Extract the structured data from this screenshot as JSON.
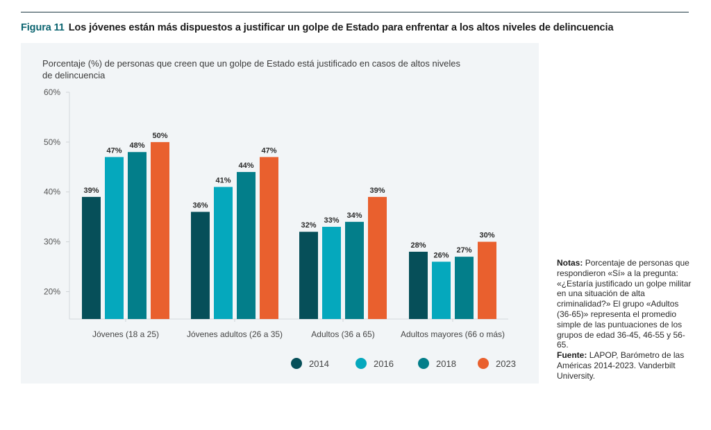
{
  "figure": {
    "number_label": "Figura 11",
    "title": "Los jóvenes están más dispuestos a justificar un golpe de Estado para enfrentar a los altos niveles de delincuencia"
  },
  "notes": {
    "notes_label": "Notas:",
    "notes_text": "Porcentaje de personas que respondieron «Sí» a la pregunta: «¿Estaría justificado un golpe militar en una situación de alta criminalidad?» El grupo «Adultos (36-65)» representa el promedio simple de las puntuaciones de los grupos de edad 36-45, 46-55 y 56-65.",
    "source_label": "Fuente:",
    "source_text": "LAPOP, Barómetro de las Américas 2014-2023. Vanderbilt University."
  },
  "chart_data": {
    "type": "bar",
    "title": "Porcentaje (%) de personas que creen que un golpe de Estado está justificado en casos de altos niveles de delincuencia",
    "xlabel": "",
    "ylabel": "",
    "categories": [
      "Jóvenes (18 a 25)",
      "Jóvenes adultos (26 a 35)",
      "Adultos (36 a 65)",
      "Adultos mayores (66 o más)"
    ],
    "series": [
      {
        "name": "2014",
        "color": "#064f59",
        "values": [
          39,
          36,
          32,
          28
        ]
      },
      {
        "name": "2016",
        "color": "#05a8bd",
        "values": [
          47,
          41,
          33,
          26
        ]
      },
      {
        "name": "2018",
        "color": "#037e8a",
        "values": [
          48,
          44,
          34,
          27
        ]
      },
      {
        "name": "2023",
        "color": "#e9602e",
        "values": [
          50,
          47,
          39,
          30
        ]
      }
    ],
    "value_labels": [
      [
        "39%",
        "36%",
        "32%",
        "28%"
      ],
      [
        "47%",
        "41%",
        "33%",
        "26%"
      ],
      [
        "48%",
        "44%",
        "34%",
        "27%"
      ],
      [
        "50%",
        "47%",
        "39%",
        "30%"
      ]
    ],
    "yticks": [
      20,
      30,
      40,
      50,
      60
    ],
    "ytick_labels": [
      "20%",
      "30%",
      "40%",
      "50%",
      "60%"
    ],
    "ylim": [
      14.5,
      60
    ],
    "grid": false,
    "legend_position": "bottom-right"
  }
}
